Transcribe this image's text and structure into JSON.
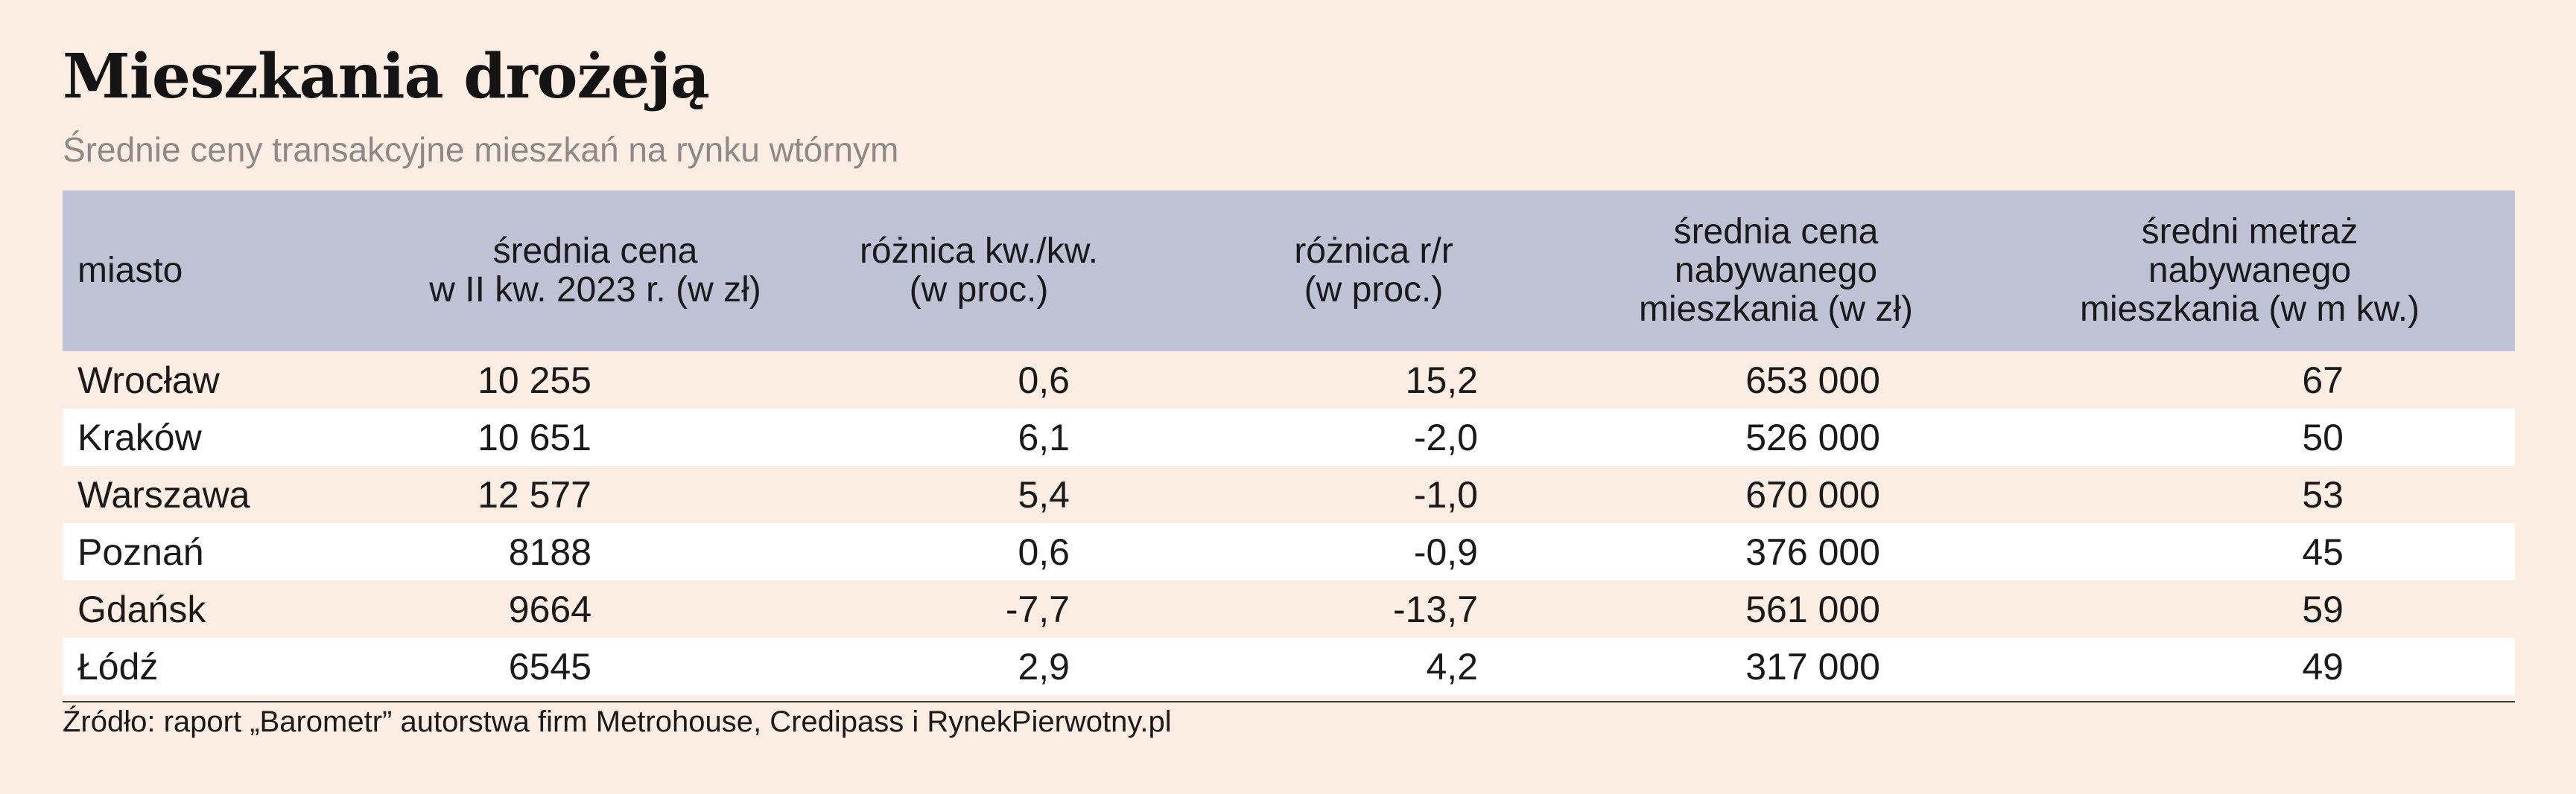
{
  "title": "Mieszkania drożeją",
  "subtitle": "Średnie ceny transakcyjne mieszkań na rynku wtórnym",
  "source": "Źródło: raport „Barometr” autorstwa firm Metrohouse, Credipass i RynekPierwotny.pl",
  "colors": {
    "background": "#fbede2",
    "header": "#bfc2d5",
    "row_alt": "#ffffff",
    "subtitle": "#8c8a87"
  },
  "chart_data": {
    "type": "table",
    "columns": [
      {
        "lines": [
          "miasto"
        ]
      },
      {
        "lines": [
          "średnia cena",
          "w II kw. 2023 r. (w zł)"
        ]
      },
      {
        "lines": [
          "różnica kw./kw.",
          "(w proc.)"
        ]
      },
      {
        "lines": [
          "różnica r/r",
          "(w proc.)"
        ]
      },
      {
        "lines": [
          "średnia cena",
          "nabywanego",
          "mieszkania (w zł)"
        ]
      },
      {
        "lines": [
          "średni metraż",
          "nabywanego",
          "mieszkania (w m kw.)"
        ]
      }
    ],
    "rows": [
      [
        "Wrocław",
        "10 255",
        "0,6",
        "15,2",
        "653 000",
        "67"
      ],
      [
        "Kraków",
        "10 651",
        "6,1",
        "-2,0",
        "526 000",
        "50"
      ],
      [
        "Warszawa",
        "12 577",
        "5,4",
        "-1,0",
        "670 000",
        "53"
      ],
      [
        "Poznań",
        "8188",
        "0,6",
        "-0,9",
        "376 000",
        "45"
      ],
      [
        "Gdańsk",
        "9664",
        "-7,7",
        "-13,7",
        "561 000",
        "59"
      ],
      [
        "Łódź",
        "6545",
        "2,9",
        "4,2",
        "317 000",
        "49"
      ]
    ]
  }
}
